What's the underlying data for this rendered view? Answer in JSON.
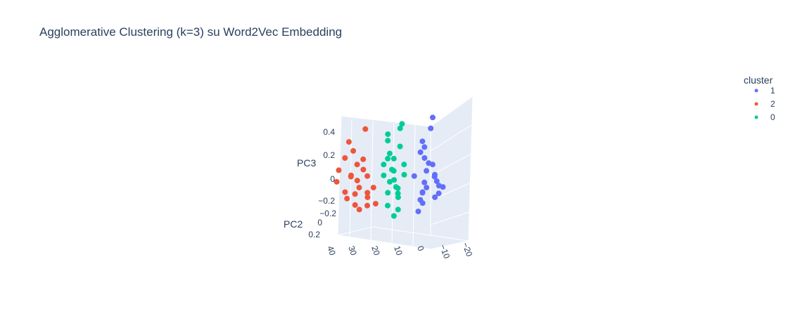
{
  "chart_data": {
    "type": "scatter",
    "subtype": "scatter3d",
    "title": "Agglomerative Clustering (k=3) su Word2Vec Embedding",
    "axes": {
      "x": {
        "label": "",
        "ticks": [
          "40",
          "30",
          "20",
          "10",
          "0",
          "−10",
          "−20"
        ]
      },
      "y": {
        "label": "PC2",
        "ticks": [
          "−0.2",
          "0",
          "0.2"
        ]
      },
      "z": {
        "label": "PC3",
        "ticks": [
          "0.4",
          "0.2",
          "0",
          "−0.2"
        ]
      }
    },
    "legend": {
      "title": "cluster",
      "position": "top-right",
      "items": [
        {
          "name": "1",
          "color": "#636efa"
        },
        {
          "name": "2",
          "color": "#ef553b"
        },
        {
          "name": "0",
          "color": "#00cc96"
        }
      ]
    },
    "grid": true,
    "series": [
      {
        "name": "1",
        "color": "#636efa",
        "points": [
          [
            -5,
            0.0,
            -0.1
          ],
          [
            -8,
            0.05,
            -0.05
          ],
          [
            -10,
            -0.05,
            0.05
          ],
          [
            -6,
            0.1,
            -0.15
          ],
          [
            -12,
            0.0,
            0.0
          ],
          [
            -3,
            -0.1,
            -0.2
          ],
          [
            -9,
            0.1,
            0.1
          ],
          [
            -14,
            0.05,
            -0.1
          ],
          [
            -7,
            -0.05,
            0.15
          ],
          [
            -4,
            0.0,
            0.25
          ],
          [
            -6,
            0.05,
            0.35
          ],
          [
            -8,
            -0.05,
            0.45
          ],
          [
            -10,
            0.0,
            0.55
          ],
          [
            -5,
            0.1,
            -0.25
          ],
          [
            -11,
            -0.1,
            -0.05
          ],
          [
            -2,
            0.05,
            0.05
          ],
          [
            -13,
            0.1,
            0.05
          ],
          [
            -9,
            -0.1,
            -0.15
          ],
          [
            -6,
            0.0,
            0.2
          ],
          [
            -7,
            0.05,
            0.3
          ],
          [
            -15,
            0.0,
            -0.05
          ],
          [
            -4,
            -0.05,
            -0.1
          ],
          [
            -8,
            0.1,
            0.0
          ],
          [
            -11,
            0.05,
            0.15
          ]
        ]
      },
      {
        "name": "2",
        "color": "#ef553b",
        "points": [
          [
            22,
            0.0,
            -0.1
          ],
          [
            25,
            0.05,
            -0.05
          ],
          [
            28,
            -0.05,
            0.0
          ],
          [
            20,
            0.1,
            -0.2
          ],
          [
            30,
            0.0,
            0.05
          ],
          [
            24,
            -0.1,
            -0.15
          ],
          [
            26,
            0.05,
            0.15
          ],
          [
            33,
            0.0,
            0.2
          ],
          [
            18,
            0.05,
            -0.05
          ],
          [
            27,
            -0.05,
            -0.25
          ],
          [
            35,
            0.05,
            0.1
          ],
          [
            29,
            0.1,
            0.35
          ],
          [
            23,
            0.0,
            0.45
          ],
          [
            31,
            -0.1,
            0.25
          ],
          [
            21,
            0.05,
            0.05
          ],
          [
            26,
            0.1,
            -0.1
          ],
          [
            32,
            0.0,
            -0.15
          ],
          [
            19,
            -0.05,
            -0.2
          ],
          [
            28,
            0.1,
            0.05
          ],
          [
            36,
            0.05,
            0.0
          ],
          [
            24,
            0.0,
            0.1
          ],
          [
            27,
            0.05,
            -0.2
          ],
          [
            34,
            -0.05,
            -0.1
          ],
          [
            22,
            0.1,
            0.2
          ]
        ]
      },
      {
        "name": "0",
        "color": "#00cc96",
        "points": [
          [
            8,
            0.0,
            -0.05
          ],
          [
            10,
            0.05,
            0.0
          ],
          [
            5,
            -0.05,
            0.05
          ],
          [
            12,
            0.0,
            -0.1
          ],
          [
            7,
            0.1,
            0.1
          ],
          [
            9,
            -0.1,
            -0.15
          ],
          [
            11,
            0.05,
            0.2
          ],
          [
            6,
            0.0,
            0.3
          ],
          [
            13,
            -0.05,
            0.4
          ],
          [
            4,
            0.05,
            0.5
          ],
          [
            10,
            0.1,
            -0.2
          ],
          [
            8,
            -0.05,
            -0.25
          ],
          [
            14,
            0.0,
            0.05
          ],
          [
            3,
            0.05,
            0.15
          ],
          [
            9,
            0.1,
            0.25
          ],
          [
            11,
            -0.1,
            0.0
          ],
          [
            6,
            0.05,
            -0.1
          ],
          [
            12,
            0.0,
            0.35
          ],
          [
            7,
            -0.05,
            0.45
          ],
          [
            10,
            0.0,
            0.1
          ],
          [
            5,
            0.1,
            -0.05
          ],
          [
            13,
            0.05,
            0.15
          ],
          [
            9,
            0.0,
            -0.3
          ],
          [
            8,
            0.05,
            0.2
          ]
        ]
      }
    ]
  }
}
